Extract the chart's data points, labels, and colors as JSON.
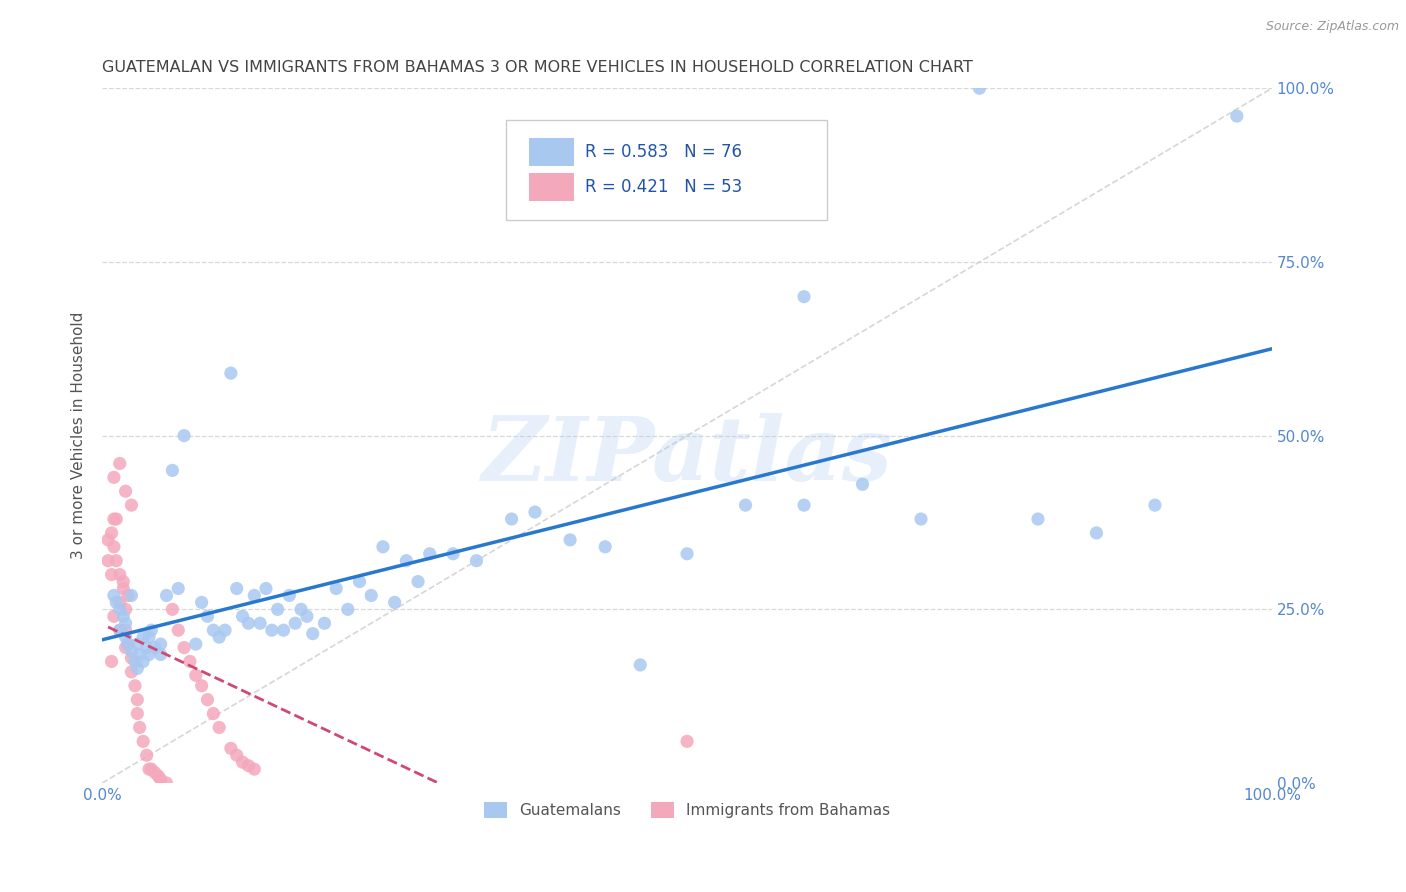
{
  "title": "GUATEMALAN VS IMMIGRANTS FROM BAHAMAS 3 OR MORE VEHICLES IN HOUSEHOLD CORRELATION CHART",
  "source": "Source: ZipAtlas.com",
  "ylabel": "3 or more Vehicles in Household",
  "R_guatemalan": 0.583,
  "N_guatemalan": 76,
  "R_bahamas": 0.421,
  "N_bahamas": 53,
  "color_guatemalan": "#a8c8f0",
  "color_bahamas": "#f4a8bc",
  "color_trend_guatemalan": "#2878d0",
  "color_trend_bahamas": "#d04878",
  "color_diagonal": "#cccccc",
  "background_color": "#ffffff",
  "title_color": "#444444",
  "axis_color": "#5588cc",
  "watermark": "ZIPatlas",
  "gx": [
    0.01,
    0.012,
    0.015,
    0.015,
    0.018,
    0.02,
    0.02,
    0.022,
    0.025,
    0.025,
    0.028,
    0.03,
    0.03,
    0.032,
    0.035,
    0.035,
    0.038,
    0.04,
    0.04,
    0.042,
    0.045,
    0.05,
    0.05,
    0.055,
    0.06,
    0.065,
    0.07,
    0.08,
    0.085,
    0.09,
    0.095,
    0.1,
    0.105,
    0.11,
    0.115,
    0.12,
    0.125,
    0.13,
    0.135,
    0.14,
    0.145,
    0.15,
    0.155,
    0.16,
    0.165,
    0.17,
    0.175,
    0.18,
    0.19,
    0.2,
    0.21,
    0.22,
    0.23,
    0.24,
    0.25,
    0.26,
    0.27,
    0.28,
    0.3,
    0.32,
    0.35,
    0.37,
    0.4,
    0.43,
    0.46,
    0.5,
    0.55,
    0.6,
    0.65,
    0.7,
    0.75,
    0.8,
    0.85,
    0.9,
    0.6,
    0.97
  ],
  "gy": [
    0.27,
    0.26,
    0.25,
    0.22,
    0.24,
    0.23,
    0.21,
    0.2,
    0.19,
    0.27,
    0.175,
    0.165,
    0.2,
    0.185,
    0.175,
    0.21,
    0.195,
    0.185,
    0.21,
    0.22,
    0.195,
    0.2,
    0.185,
    0.27,
    0.45,
    0.28,
    0.5,
    0.2,
    0.26,
    0.24,
    0.22,
    0.21,
    0.22,
    0.59,
    0.28,
    0.24,
    0.23,
    0.27,
    0.23,
    0.28,
    0.22,
    0.25,
    0.22,
    0.27,
    0.23,
    0.25,
    0.24,
    0.215,
    0.23,
    0.28,
    0.25,
    0.29,
    0.27,
    0.34,
    0.26,
    0.32,
    0.29,
    0.33,
    0.33,
    0.32,
    0.38,
    0.39,
    0.35,
    0.34,
    0.17,
    0.33,
    0.4,
    0.7,
    0.43,
    0.38,
    1.0,
    0.38,
    0.36,
    0.4,
    0.4,
    0.96
  ],
  "bx": [
    0.005,
    0.008,
    0.01,
    0.01,
    0.012,
    0.015,
    0.015,
    0.018,
    0.02,
    0.02,
    0.022,
    0.025,
    0.025,
    0.028,
    0.03,
    0.03,
    0.032,
    0.035,
    0.038,
    0.04,
    0.042,
    0.045,
    0.048,
    0.05,
    0.055,
    0.06,
    0.065,
    0.07,
    0.075,
    0.08,
    0.085,
    0.09,
    0.095,
    0.1,
    0.11,
    0.115,
    0.12,
    0.125,
    0.13,
    0.01,
    0.015,
    0.02,
    0.025,
    0.012,
    0.008,
    0.018,
    0.022,
    0.005,
    0.01,
    0.015,
    0.02,
    0.008,
    0.5
  ],
  "by": [
    0.35,
    0.36,
    0.38,
    0.34,
    0.32,
    0.3,
    0.26,
    0.28,
    0.25,
    0.22,
    0.2,
    0.18,
    0.16,
    0.14,
    0.12,
    0.1,
    0.08,
    0.06,
    0.04,
    0.02,
    0.02,
    0.015,
    0.01,
    0.005,
    0.0,
    0.25,
    0.22,
    0.195,
    0.175,
    0.155,
    0.14,
    0.12,
    0.1,
    0.08,
    0.05,
    0.04,
    0.03,
    0.025,
    0.02,
    0.44,
    0.46,
    0.42,
    0.4,
    0.38,
    0.3,
    0.29,
    0.27,
    0.32,
    0.24,
    0.22,
    0.195,
    0.175,
    0.06
  ]
}
